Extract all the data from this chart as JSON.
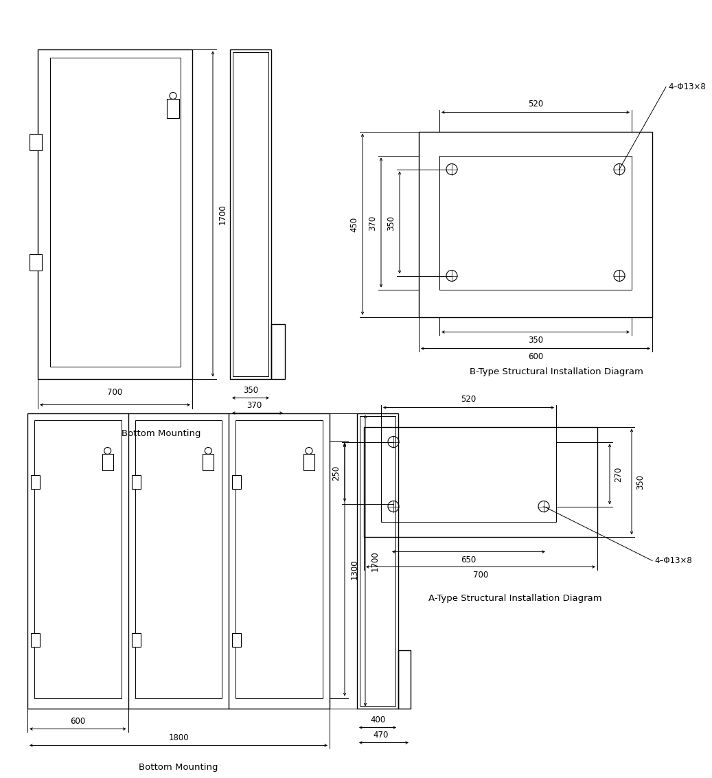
{
  "bg_color": "#ffffff",
  "lw": 1.0,
  "tlw": 0.7,
  "dlw": 0.7,
  "fs": 8.5,
  "fs_cap": 9.5,
  "top_cap": "Bottom Mounting",
  "bot_cap": "Bottom Mounting",
  "a_cap": "A-Type Structural Installation Diagram",
  "b_cap": "B-Type Structural Installation Diagram",
  "A_label_520": "520",
  "A_label_650": "650",
  "A_label_700": "700",
  "A_label_250": "250",
  "A_label_270": "270",
  "A_label_350": "350",
  "A_label_holes": "4–Φ13×8",
  "B_label_520": "520",
  "B_label_350h": "350",
  "B_label_600": "600",
  "B_label_350v": "350",
  "B_label_370": "370",
  "B_label_450": "450",
  "B_label_holes": "4–Φ13×8",
  "TL_label_700": "700",
  "TL_label_1700": "1700",
  "TL_label_350": "350",
  "TL_label_370": "370",
  "BL_label_600": "600",
  "BL_label_1800": "1800",
  "BL_label_1300": "1300",
  "BL_label_1700": "1700",
  "BL_label_400": "400",
  "BL_label_470": "470"
}
